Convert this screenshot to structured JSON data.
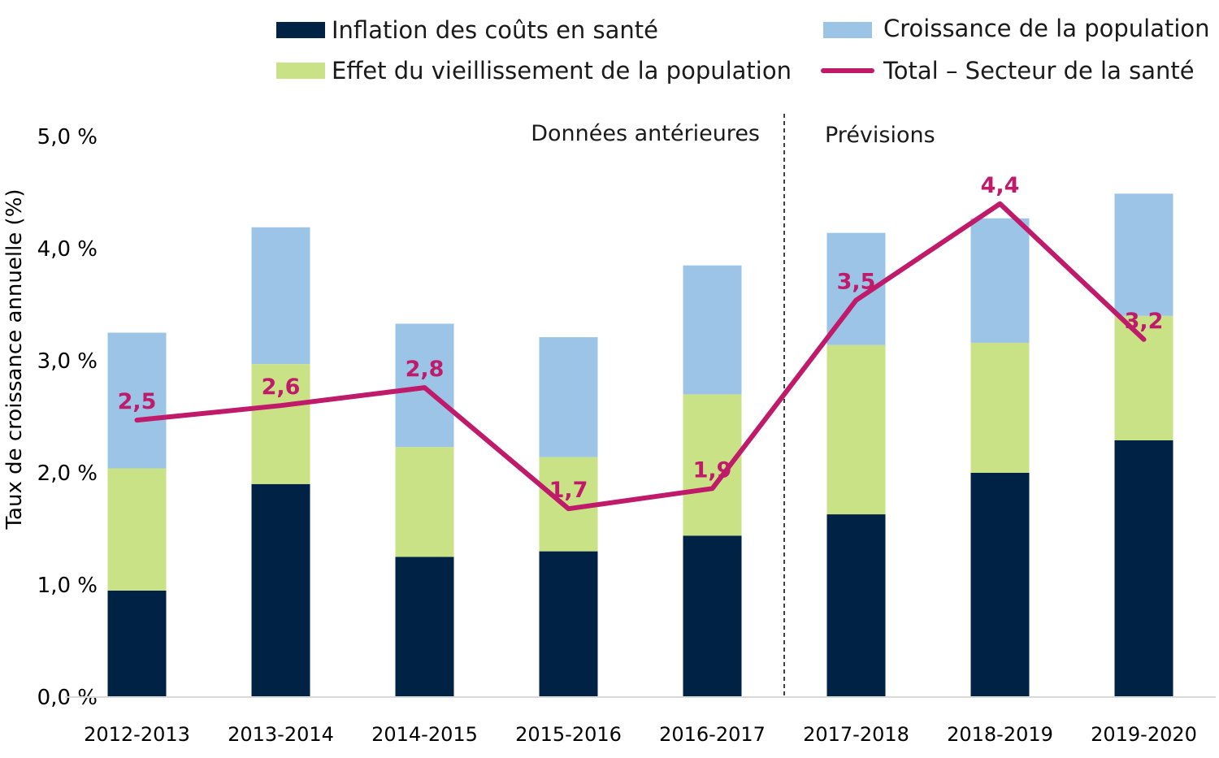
{
  "chart_data": {
    "type": "bar",
    "stacked": true,
    "categories": [
      "2012-2013",
      "2013-2014",
      "2014-2015",
      "2015-2016",
      "2016-2017",
      "2017-2018",
      "2018-2019",
      "2019-2020"
    ],
    "series": [
      {
        "name": "Inflation des coûts en santé",
        "color": "#002244",
        "values": [
          0.95,
          1.9,
          1.25,
          1.3,
          1.44,
          1.63,
          2.0,
          2.29
        ]
      },
      {
        "name": "Effet du vieillissement de la population",
        "color": "#c9e286",
        "values": [
          1.09,
          1.07,
          0.98,
          0.84,
          1.26,
          1.51,
          1.16,
          1.11
        ]
      },
      {
        "name": "Croissance de la population",
        "color": "#9bc4e6",
        "values": [
          1.21,
          1.22,
          1.1,
          1.07,
          1.15,
          1.0,
          1.11,
          1.09
        ]
      }
    ],
    "line": {
      "name": "Total – Secteur de la santé",
      "color": "#c01a6a",
      "values": [
        2.47,
        2.6,
        2.76,
        1.68,
        1.86,
        3.54,
        4.4,
        3.19
      ],
      "labels": [
        "2,5",
        "2,6",
        "2,8",
        "1,7",
        "1,9",
        "3,5",
        "4,4",
        "3,2"
      ]
    },
    "ylabel": "Taux de croissance annuelle (%)",
    "ylim": [
      0,
      5
    ],
    "yticks": [
      0,
      1,
      2,
      3,
      4,
      5
    ],
    "ytick_labels": [
      "0,0 %",
      "1,0 %",
      "2,0 %",
      "3,0 %",
      "4,0 %",
      "5,0 %"
    ],
    "sections": [
      {
        "label": "Données antérieures"
      },
      {
        "label": "Prévisions"
      }
    ],
    "divider_after_index": 4,
    "legend_position": "top"
  }
}
